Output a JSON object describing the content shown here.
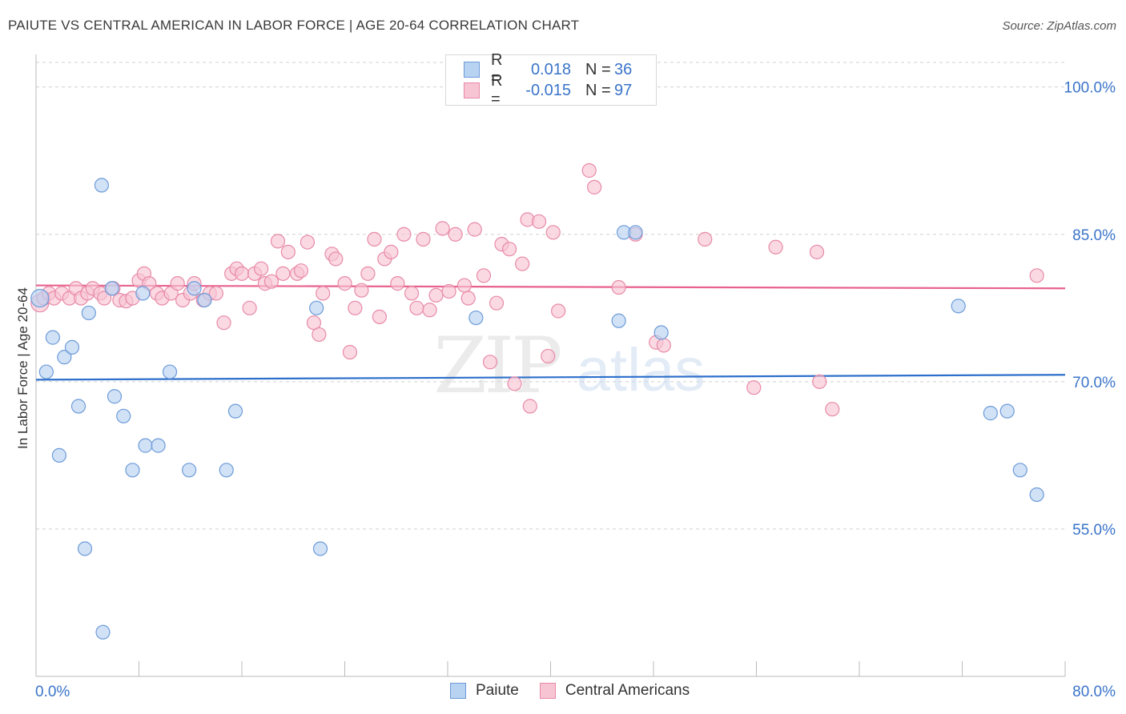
{
  "title": "PAIUTE VS CENTRAL AMERICAN IN LABOR FORCE | AGE 20-64 CORRELATION CHART",
  "source": "Source: ZipAtlas.com",
  "watermark": {
    "zip": "ZIP",
    "atlas": "atlas"
  },
  "legend": {
    "rows": [
      {
        "r_label": "R =",
        "r_value": "0.018",
        "n_label": "N =",
        "n_value": "36"
      },
      {
        "r_label": "R =",
        "r_value": "-0.015",
        "n_label": "N =",
        "n_value": "97"
      }
    ]
  },
  "bottom_legend": {
    "paiute": "Paiute",
    "central": "Central Americans"
  },
  "colors": {
    "paiute_fill": "#b8d2f2",
    "paiute_stroke": "#6d9bd8",
    "paiute_line": "#2d6fcb",
    "central_fill": "#f7c4d4",
    "central_stroke": "#e88aa8",
    "central_line": "#e8628d",
    "axis_label": "#3a74c9",
    "grid": "#d0d0d0"
  },
  "chart_data": {
    "type": "scatter",
    "title": "PAIUTE VS CENTRAL AMERICAN IN LABOR FORCE | AGE 20-64 CORRELATION CHART",
    "xlabel": "",
    "ylabel": "In Labor Force | Age 20-64",
    "xlim": [
      0,
      80
    ],
    "ylim": [
      40,
      102.5
    ],
    "x_tick_labels": [
      "0.0%",
      "80.0%"
    ],
    "y_ticks": [
      55,
      70,
      85,
      100
    ],
    "y_tick_labels": [
      "55.0%",
      "70.0%",
      "85.0%",
      "100.0%"
    ],
    "grid": "horizontal dashed",
    "legend_position": "top-center",
    "series": [
      {
        "name": "Paiute",
        "trend": {
          "x": [
            0,
            80
          ],
          "y": [
            70.2,
            70.7
          ]
        },
        "points": [
          [
            0.3,
            78.5
          ],
          [
            0.8,
            71
          ],
          [
            1.3,
            74.5
          ],
          [
            1.8,
            62.5
          ],
          [
            2.2,
            72.5
          ],
          [
            2.8,
            73.5
          ],
          [
            3.3,
            67.5
          ],
          [
            3.8,
            53
          ],
          [
            4.1,
            77
          ],
          [
            5.1,
            90
          ],
          [
            5.2,
            44.5
          ],
          [
            5.9,
            79.5
          ],
          [
            6.1,
            68.5
          ],
          [
            6.8,
            66.5
          ],
          [
            7.5,
            61
          ],
          [
            8.3,
            79
          ],
          [
            8.5,
            63.5
          ],
          [
            9.5,
            63.5
          ],
          [
            10.4,
            71
          ],
          [
            11.9,
            61
          ],
          [
            12.3,
            79.5
          ],
          [
            13.1,
            78.3
          ],
          [
            14.8,
            61
          ],
          [
            15.5,
            67
          ],
          [
            21.8,
            77.5
          ],
          [
            22.1,
            53
          ],
          [
            34.2,
            76.5
          ],
          [
            45.3,
            76.2
          ],
          [
            45.7,
            85.2
          ],
          [
            46.6,
            85.2
          ],
          [
            48.6,
            75
          ],
          [
            71.7,
            77.7
          ],
          [
            74.2,
            66.8
          ],
          [
            75.5,
            67
          ],
          [
            76.5,
            61
          ],
          [
            77.8,
            58.5
          ]
        ]
      },
      {
        "name": "Central Americans",
        "trend": {
          "x": [
            0,
            80
          ],
          "y": [
            79.8,
            79.5
          ]
        },
        "points": [
          [
            0.3,
            78
          ],
          [
            0.6,
            78.5
          ],
          [
            1.0,
            79
          ],
          [
            1.4,
            78.5
          ],
          [
            2.0,
            79
          ],
          [
            2.6,
            78.5
          ],
          [
            3.1,
            79.5
          ],
          [
            3.5,
            78.5
          ],
          [
            4.0,
            79
          ],
          [
            4.4,
            79.5
          ],
          [
            5.0,
            79
          ],
          [
            5.3,
            78.5
          ],
          [
            6.0,
            79.5
          ],
          [
            6.5,
            78.3
          ],
          [
            7.0,
            78.2
          ],
          [
            7.5,
            78.5
          ],
          [
            8.0,
            80.3
          ],
          [
            8.4,
            81
          ],
          [
            8.8,
            80
          ],
          [
            9.4,
            79
          ],
          [
            9.8,
            78.5
          ],
          [
            10.5,
            79
          ],
          [
            11.0,
            80
          ],
          [
            11.4,
            78.3
          ],
          [
            12.0,
            79
          ],
          [
            12.3,
            80
          ],
          [
            13.0,
            78.3
          ],
          [
            13.5,
            79
          ],
          [
            14.0,
            79
          ],
          [
            14.6,
            76
          ],
          [
            15.2,
            81
          ],
          [
            15.6,
            81.5
          ],
          [
            16.0,
            81
          ],
          [
            16.6,
            77.5
          ],
          [
            17.0,
            81
          ],
          [
            17.5,
            81.5
          ],
          [
            17.8,
            80
          ],
          [
            18.3,
            80.2
          ],
          [
            18.8,
            84.3
          ],
          [
            19.2,
            81
          ],
          [
            19.6,
            83.2
          ],
          [
            20.3,
            81
          ],
          [
            20.6,
            81.3
          ],
          [
            21.1,
            84.2
          ],
          [
            21.6,
            76
          ],
          [
            22.0,
            74.8
          ],
          [
            22.3,
            79
          ],
          [
            23.0,
            83
          ],
          [
            23.3,
            82.5
          ],
          [
            24.0,
            80
          ],
          [
            24.4,
            73
          ],
          [
            24.8,
            77.5
          ],
          [
            25.3,
            79.3
          ],
          [
            25.8,
            81
          ],
          [
            26.3,
            84.5
          ],
          [
            26.7,
            76.6
          ],
          [
            27.1,
            82.5
          ],
          [
            27.6,
            83.2
          ],
          [
            28.1,
            80
          ],
          [
            28.6,
            85
          ],
          [
            29.2,
            79
          ],
          [
            29.6,
            77.5
          ],
          [
            30.1,
            84.5
          ],
          [
            30.6,
            77.3
          ],
          [
            31.1,
            78.8
          ],
          [
            31.6,
            85.6
          ],
          [
            32.1,
            79.2
          ],
          [
            32.6,
            85
          ],
          [
            33.3,
            79.8
          ],
          [
            33.6,
            78.5
          ],
          [
            34.1,
            85.5
          ],
          [
            34.8,
            80.8
          ],
          [
            35.3,
            72
          ],
          [
            35.8,
            78
          ],
          [
            36.2,
            84
          ],
          [
            36.8,
            83.5
          ],
          [
            37.2,
            69.8
          ],
          [
            37.8,
            82
          ],
          [
            38.2,
            86.5
          ],
          [
            38.4,
            67.5
          ],
          [
            39.1,
            86.3
          ],
          [
            39.8,
            72.6
          ],
          [
            40.2,
            85.2
          ],
          [
            40.6,
            77.2
          ],
          [
            43.0,
            91.5
          ],
          [
            43.4,
            89.8
          ],
          [
            45.3,
            79.6
          ],
          [
            46.6,
            85
          ],
          [
            48.2,
            74
          ],
          [
            48.8,
            73.7
          ],
          [
            52.0,
            84.5
          ],
          [
            55.8,
            69.4
          ],
          [
            57.5,
            83.7
          ],
          [
            60.7,
            83.2
          ],
          [
            60.9,
            70
          ],
          [
            61.9,
            67.2
          ],
          [
            77.8,
            80.8
          ]
        ]
      }
    ]
  }
}
